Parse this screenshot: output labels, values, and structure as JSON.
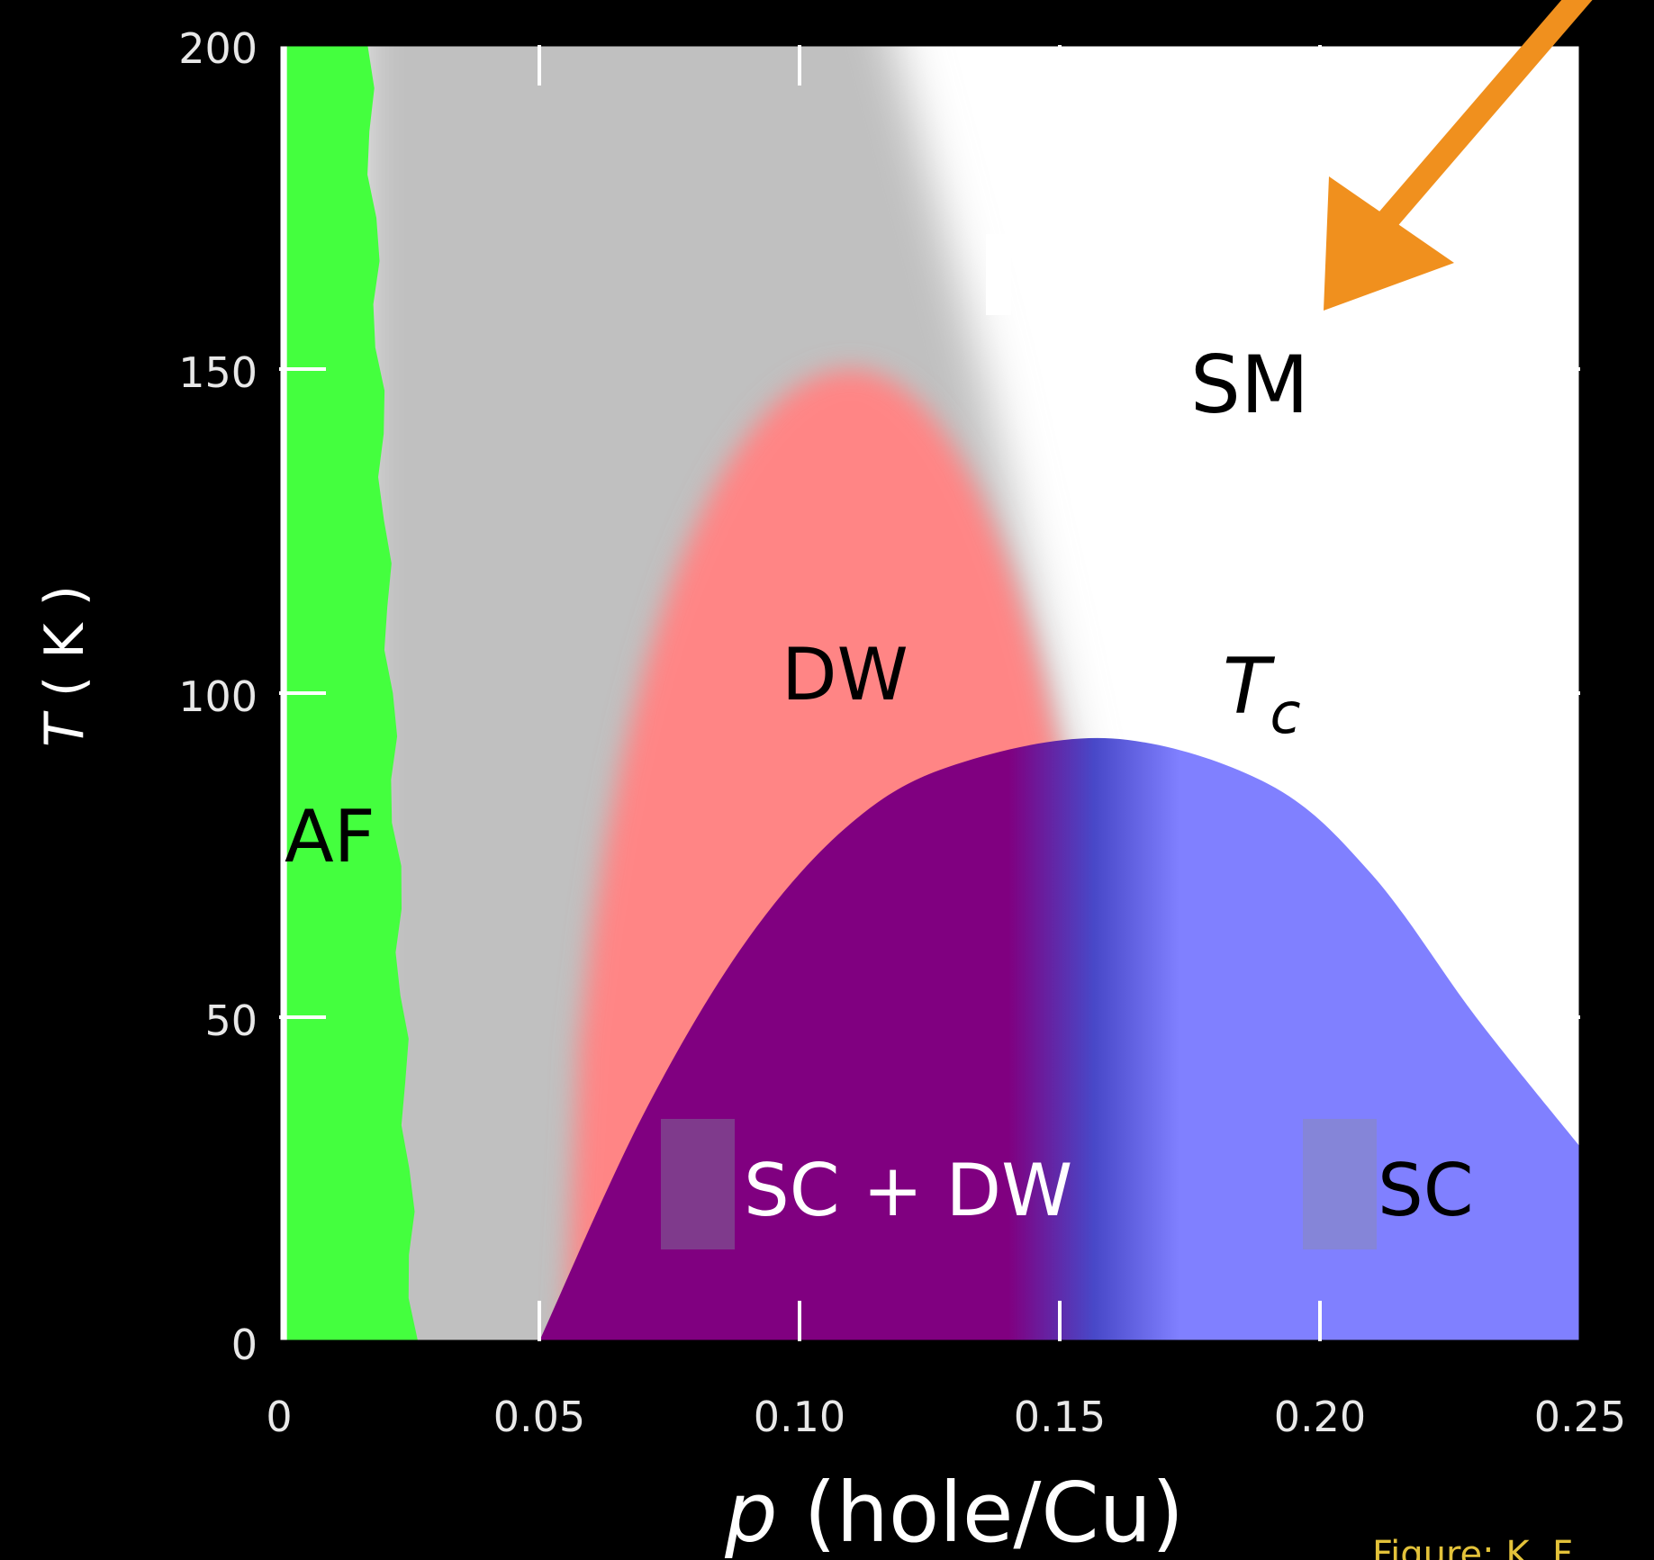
{
  "chart_data": {
    "type": "area",
    "title": "",
    "xlabel_italic": "p",
    "xlabel_rest": " (hole/Cu)",
    "ylabel_italic": "T",
    "ylabel_rest": " ( K )",
    "xlim": [
      0,
      0.25
    ],
    "ylim": [
      0,
      200
    ],
    "x_ticks": [
      0,
      0.05,
      0.1,
      0.15,
      0.2,
      0.25
    ],
    "x_tick_labels": [
      "0",
      "0.05",
      "0.10",
      "0.15",
      "0.20",
      "0.25"
    ],
    "y_ticks": [
      0,
      50,
      100,
      150,
      200
    ],
    "y_tick_labels": [
      "0",
      "50",
      "100",
      "150",
      "200"
    ],
    "regions": [
      {
        "name": "AF",
        "color": "#44ff3e",
        "x_range": [
          0,
          0.025
        ]
      },
      {
        "name": "DW",
        "color": "#ff8585",
        "peak": {
          "x": 0.11,
          "y": 150
        },
        "x_range": [
          0.055,
          0.16
        ]
      },
      {
        "name": "SC + DW",
        "color": "#800080",
        "x_range": [
          0.05,
          0.165
        ]
      },
      {
        "name": "SC",
        "color": "#8080ff",
        "x_range": [
          0.165,
          0.25
        ]
      },
      {
        "name": "SM",
        "color": "#ffffff"
      }
    ],
    "pseudogap_color": "#c0c0c0",
    "tc_dome": [
      [
        0.05,
        0
      ],
      [
        0.07,
        35
      ],
      [
        0.09,
        62
      ],
      [
        0.11,
        80
      ],
      [
        0.13,
        89
      ],
      [
        0.16,
        93
      ],
      [
        0.19,
        86
      ],
      [
        0.21,
        72
      ],
      [
        0.23,
        50
      ],
      [
        0.25,
        30
      ]
    ],
    "annotations": {
      "af": "AF",
      "dw": "DW",
      "sc_dw": "SC + DW",
      "sc": "SC",
      "sm": "SM",
      "tc_main": "T",
      "tc_sub": "c"
    },
    "arrow_color": "#f0901e"
  },
  "credit": "Figure: K. F"
}
